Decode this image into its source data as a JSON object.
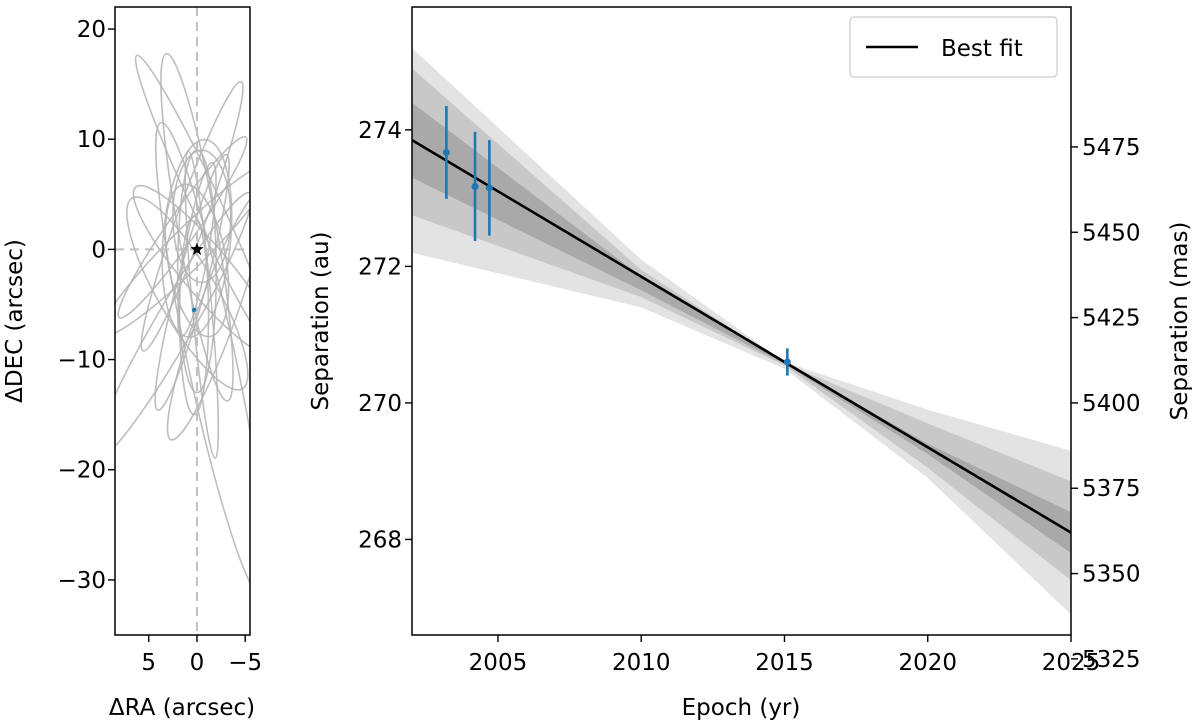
{
  "chart_data": [
    {
      "type": "line",
      "xlabel": "ΔRA (arcsec)",
      "ylabel": "ΔDEC (arcsec)",
      "xlim": [
        8.5,
        -5.5
      ],
      "ylim": [
        -35,
        22
      ],
      "xticks": [
        5,
        0,
        -5
      ],
      "xtick_labels": [
        "5",
        "0",
        "−5"
      ],
      "yticks": [
        20,
        10,
        0,
        -10,
        -20,
        -30
      ],
      "ytick_labels": [
        "20",
        "10",
        "0",
        "−10",
        "−20",
        "−30"
      ],
      "reference_lines": {
        "x": 0,
        "y": 0,
        "style": "dashed",
        "color": "#c0c0c0"
      },
      "star": {
        "x": 0,
        "y": 0,
        "marker": "star",
        "color": "#000000"
      },
      "companion_point": {
        "x": 0.3,
        "y": -5.5,
        "color": "#1f77b4"
      },
      "orbit_color": "#b3b3b3",
      "orbits": [
        {
          "cx": 0.0,
          "cy": 2.0,
          "a": 2.0,
          "b": 16.0,
          "rot": -10
        },
        {
          "cx": 0.5,
          "cy": -3.0,
          "a": 1.5,
          "b": 12.0,
          "rot": 15
        },
        {
          "cx": -1.5,
          "cy": -10.0,
          "a": 2.5,
          "b": 22.0,
          "rot": -12
        },
        {
          "cx": 2.5,
          "cy": -7.0,
          "a": 2.0,
          "b": 14.0,
          "rot": 30
        },
        {
          "cx": 0.0,
          "cy": 1.0,
          "a": 3.5,
          "b": 9.0,
          "rot": 5
        },
        {
          "cx": -1.0,
          "cy": 4.0,
          "a": 1.5,
          "b": 15.0,
          "rot": -25
        },
        {
          "cx": 1.0,
          "cy": -4.0,
          "a": 3.0,
          "b": 10.0,
          "rot": -30
        },
        {
          "cx": 0.0,
          "cy": -2.0,
          "a": 2.0,
          "b": 11.0,
          "rot": 0
        },
        {
          "cx": -2.0,
          "cy": -6.0,
          "a": 2.0,
          "b": 12.0,
          "rot": 20
        },
        {
          "cx": 0.5,
          "cy": 3.0,
          "a": 1.5,
          "b": 13.0,
          "rot": 20
        },
        {
          "cx": 0.0,
          "cy": -1.0,
          "a": 3.0,
          "b": 7.0,
          "rot": -10
        },
        {
          "cx": 1.5,
          "cy": 2.0,
          "a": 1.5,
          "b": 10.0,
          "rot": 35
        },
        {
          "cx": -1.0,
          "cy": -2.0,
          "a": 2.5,
          "b": 10.0,
          "rot": -40
        },
        {
          "cx": 0.0,
          "cy": 0.0,
          "a": 1.2,
          "b": 8.0,
          "rot": 10
        },
        {
          "cx": -0.5,
          "cy": 3.0,
          "a": 3.0,
          "b": 6.0,
          "rot": 0
        },
        {
          "cx": 0.3,
          "cy": -6.0,
          "a": 1.5,
          "b": 9.0,
          "rot": 0
        },
        {
          "cx": 1.0,
          "cy": 0.0,
          "a": 2.0,
          "b": 11.0,
          "rot": 45
        },
        {
          "cx": -0.5,
          "cy": -5.0,
          "a": 1.0,
          "b": 14.0,
          "rot": -5
        }
      ]
    },
    {
      "type": "line",
      "xlabel": "Epoch (yr)",
      "ylabel": "Separation (au)",
      "ylabel_right": "Separation (mas)",
      "xlim": [
        2002,
        2025
      ],
      "ylim": [
        266.6,
        275.8
      ],
      "xticks": [
        2005,
        2010,
        2015,
        2020,
        2025
      ],
      "xtick_labels": [
        "2005",
        "2010",
        "2015",
        "2020",
        "2025"
      ],
      "yticks": [
        268,
        270,
        272,
        274
      ],
      "ytick_labels": [
        "268",
        "270",
        "272",
        "274"
      ],
      "right_axis": {
        "scale_mas_per_au": 20,
        "ticks": [
          5325,
          5350,
          5375,
          5400,
          5425,
          5450,
          5475
        ],
        "tick_labels": [
          "5325",
          "5350",
          "5375",
          "5400",
          "5425",
          "5450",
          "5475"
        ]
      },
      "legend": {
        "position": "top-right",
        "entries": [
          "Best fit"
        ]
      },
      "best_fit": {
        "name": "Best fit",
        "x": [
          2002,
          2025
        ],
        "y": [
          273.85,
          268.1
        ],
        "color": "#000000"
      },
      "bands": [
        {
          "x": [
            2002,
            2010,
            2015,
            2020,
            2025
          ],
          "lower": [
            272.2,
            271.4,
            270.5,
            268.9,
            266.9
          ],
          "upper": [
            275.2,
            272.1,
            270.6,
            269.9,
            269.3
          ],
          "color": "#e3e3e3"
        },
        {
          "x": [
            2002,
            2010,
            2015,
            2020,
            2025
          ],
          "lower": [
            272.75,
            271.55,
            270.55,
            269.05,
            267.4
          ],
          "upper": [
            274.9,
            271.95,
            270.58,
            269.7,
            268.85
          ],
          "color": "#c8c8c8"
        },
        {
          "x": [
            2002,
            2010,
            2015,
            2020,
            2025
          ],
          "lower": [
            273.3,
            271.65,
            270.57,
            269.25,
            267.8
          ],
          "upper": [
            274.4,
            271.85,
            270.59,
            269.4,
            268.4
          ],
          "color": "#a9a9a9"
        }
      ],
      "data_points": {
        "color": "#1f77b4",
        "points": [
          {
            "x": 2003.2,
            "y": 273.67,
            "yerr": 0.68
          },
          {
            "x": 2004.2,
            "y": 273.17,
            "yerr": 0.8
          },
          {
            "x": 2004.7,
            "y": 273.15,
            "yerr": 0.7
          },
          {
            "x": 2015.1,
            "y": 270.6,
            "yerr": 0.2
          }
        ]
      }
    }
  ]
}
